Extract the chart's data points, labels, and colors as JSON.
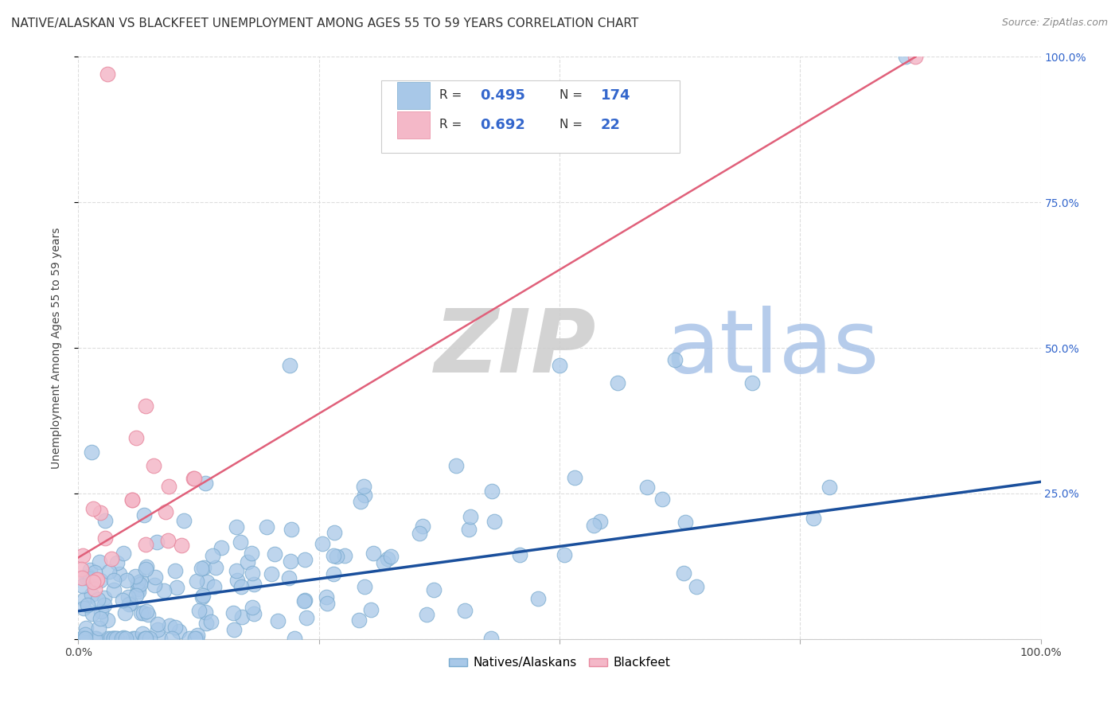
{
  "title": "NATIVE/ALASKAN VS BLACKFEET UNEMPLOYMENT AMONG AGES 55 TO 59 YEARS CORRELATION CHART",
  "source": "Source: ZipAtlas.com",
  "ylabel": "Unemployment Among Ages 55 to 59 years",
  "xlim": [
    0,
    1
  ],
  "ylim": [
    0,
    1
  ],
  "blue_R": 0.495,
  "blue_N": 174,
  "pink_R": 0.692,
  "pink_N": 22,
  "blue_color": "#a8c8e8",
  "blue_edge_color": "#7aabcf",
  "pink_color": "#f4b8c8",
  "pink_edge_color": "#e88aa0",
  "blue_line_color": "#1a4f9c",
  "pink_line_color": "#e0607a",
  "legend_R_color": "#3366cc",
  "legend_N_color": "#3366cc",
  "watermark_ZIP_color": "#cccccc",
  "watermark_atlas_color": "#aac4e8",
  "background_color": "#ffffff",
  "grid_color": "#dddddd",
  "title_fontsize": 11,
  "ylabel_fontsize": 10,
  "tick_color": "#3366cc",
  "seed": 42,
  "blue_line_x0": 0.0,
  "blue_line_y0": 0.048,
  "blue_line_x1": 1.0,
  "blue_line_y1": 0.27,
  "pink_line_x0": 0.0,
  "pink_line_y0": 0.14,
  "pink_line_x1": 0.87,
  "pink_line_y1": 1.0
}
